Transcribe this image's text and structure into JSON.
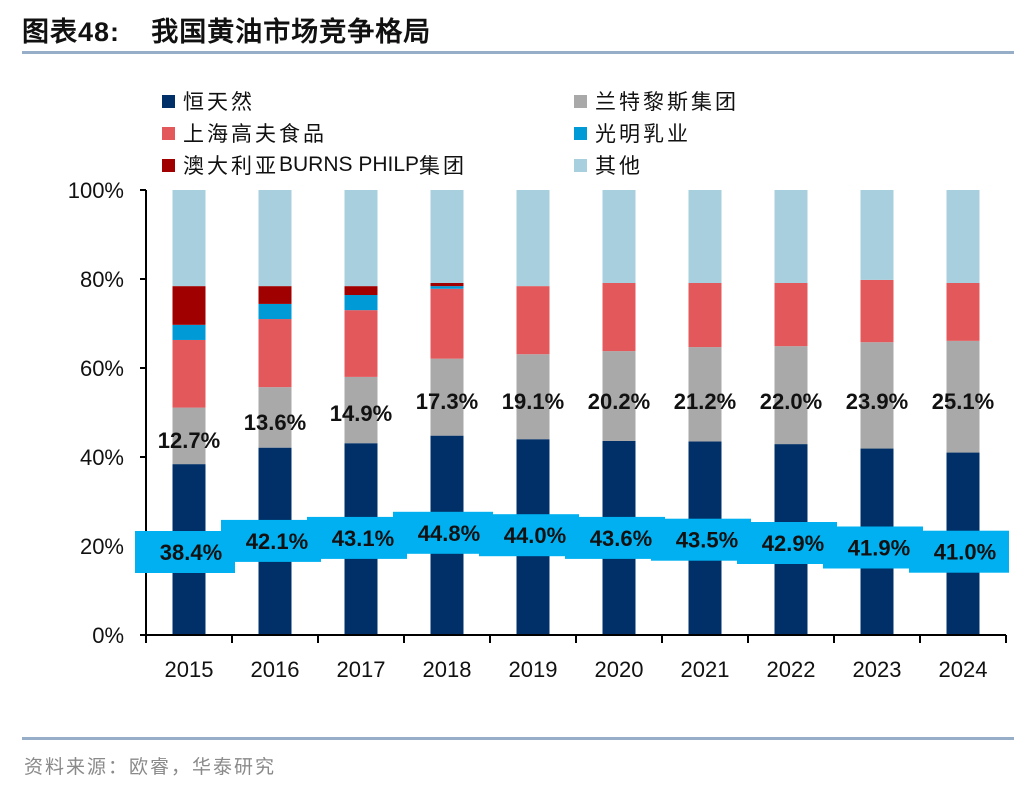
{
  "figure": {
    "title_prefix": "图表",
    "title_number": "48:",
    "title_text": "我国黄油市场竞争格局",
    "source": "资料来源：欧睿，华泰研究"
  },
  "chart_data": {
    "type": "bar",
    "stacked": true,
    "title": "我国黄油市场竞争格局",
    "xlabel": "",
    "ylabel": "",
    "ylim": [
      0,
      100
    ],
    "y_unit": "%",
    "y_ticks": [
      "0%",
      "20%",
      "40%",
      "60%",
      "80%",
      "100%"
    ],
    "y_tick_values": [
      0,
      20,
      40,
      60,
      80,
      100
    ],
    "grid": false,
    "legend_position": "top",
    "categories": [
      "2015",
      "2016",
      "2017",
      "2018",
      "2019",
      "2020",
      "2021",
      "2022",
      "2023",
      "2024"
    ],
    "series": [
      {
        "name": "恒天然",
        "color": "#003067",
        "values": [
          38.4,
          42.1,
          43.1,
          44.8,
          44.0,
          43.6,
          43.5,
          42.9,
          41.9,
          41.0
        ],
        "data_labels": [
          "38.4%",
          "42.1%",
          "43.1%",
          "44.8%",
          "44.0%",
          "43.6%",
          "43.5%",
          "42.9%",
          "41.9%",
          "41.0%"
        ]
      },
      {
        "name": "兰特黎斯集团",
        "color": "#a9a9a9",
        "values": [
          12.7,
          13.6,
          14.9,
          17.3,
          19.1,
          20.2,
          21.2,
          22.0,
          23.9,
          25.1
        ],
        "data_labels": [
          "12.7%",
          "13.6%",
          "14.9%",
          "17.3%",
          "19.1%",
          "20.2%",
          "21.2%",
          "22.0%",
          "23.9%",
          "25.1%"
        ]
      },
      {
        "name": "上海高夫食品",
        "color": "#e3585b",
        "values": [
          15.2,
          15.3,
          15.0,
          15.7,
          15.3,
          15.3,
          14.4,
          14.2,
          14.0,
          13.0
        ]
      },
      {
        "name": "光明乳业",
        "color": "#009ad6",
        "values": [
          3.4,
          3.4,
          3.4,
          0.6,
          0,
          0,
          0,
          0,
          0,
          0
        ]
      },
      {
        "name": "澳大利亚BURNS PHILP集团",
        "color": "#a00000",
        "values": [
          8.7,
          4.0,
          2.0,
          0.7,
          0,
          0,
          0,
          0,
          0,
          0
        ]
      },
      {
        "name": "其他",
        "color": "#a8cfde",
        "values": [
          21.6,
          21.6,
          21.6,
          20.9,
          21.6,
          20.9,
          20.9,
          20.9,
          20.2,
          20.9
        ]
      }
    ],
    "label_box_color": "#00b0f0"
  },
  "legend": {
    "items": [
      {
        "label": "恒天然",
        "color": "#003067"
      },
      {
        "label": "兰特黎斯集团",
        "color": "#a9a9a9"
      },
      {
        "label": "上海高夫食品",
        "color": "#e3585b"
      },
      {
        "label": "光明乳业",
        "color": "#009ad6"
      },
      {
        "label_cn": "澳大利亚",
        "label_latin": "BURNS PHILP",
        "label_cn2": "集团",
        "color": "#a00000"
      },
      {
        "label": "其他",
        "color": "#a8cfde"
      }
    ]
  }
}
